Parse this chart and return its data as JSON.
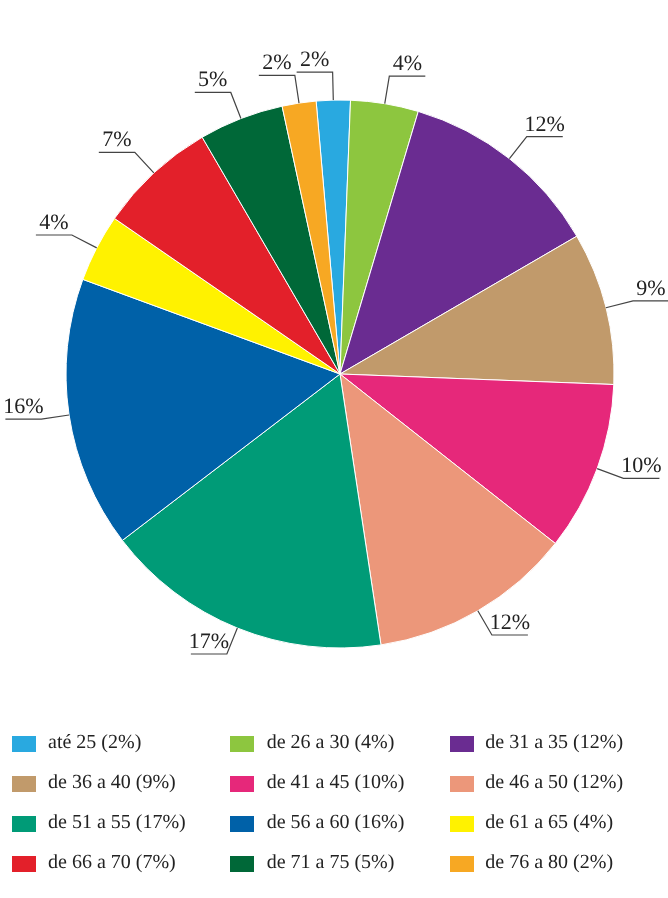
{
  "chart_data": {
    "type": "pie",
    "categories": [
      "até 25 (2%)",
      "de 26 a 30 (4%)",
      "de 31 a 35 (12%)",
      "de 36 a 40 (9%)",
      "de 41 a 45 (10%)",
      "de 46 a 50 (12%)",
      "de 51 a 55 (17%)",
      "de 56 a 60 (16%)",
      "de 61 a 65 (4%)",
      "de 66 a 70 (7%)",
      "de 71 a 75 (5%)",
      "de 76 a 80 (2%)"
    ],
    "values": [
      2,
      4,
      12,
      9,
      10,
      12,
      17,
      16,
      4,
      7,
      5,
      2
    ],
    "value_labels": [
      "2%",
      "4%",
      "12%",
      "9%",
      "10%",
      "12%",
      "17%",
      "16%",
      "4%",
      "7%",
      "5%",
      "2%"
    ],
    "colors": [
      "#29a9e0",
      "#8dc63f",
      "#6a2c91",
      "#c19a6b",
      "#e6287a",
      "#ec977a",
      "#009b77",
      "#0061a8",
      "#fff200",
      "#e3202a",
      "#006838",
      "#f7a823"
    ],
    "legend": "bottom"
  }
}
